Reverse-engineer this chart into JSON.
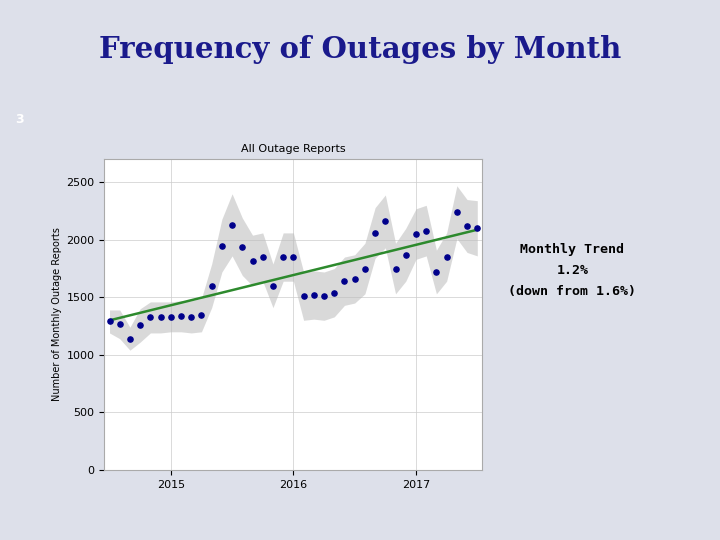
{
  "title": "Frequency of Outages by Month",
  "slide_number": "3",
  "chart_title": "All Outage Reports",
  "ylabel": "Number of Monthly Outage Reports",
  "ylim": [
    0,
    2700
  ],
  "yticks": [
    0,
    500,
    1000,
    1500,
    2000,
    2500
  ],
  "xlabel_ticks": [
    "2015",
    "2016",
    "2017"
  ],
  "bg_color": "#dde0ea",
  "header_bar_color": "#5b3a6e",
  "number_bar_color": "#556b2f",
  "annotation_text": "Monthly Trend\n1.2%\n(down from 1.6%)",
  "trend_color": "#2d8a2d",
  "dot_color": "#00008b",
  "ci_color": "#bbbbbb",
  "data_x": [
    1,
    2,
    3,
    4,
    5,
    6,
    7,
    8,
    9,
    10,
    11,
    12,
    13,
    14,
    15,
    16,
    17,
    18,
    19,
    20,
    21,
    22,
    23,
    24,
    25,
    26,
    27,
    28,
    29,
    30,
    31,
    32,
    33,
    34,
    35,
    36,
    37
  ],
  "data_y": [
    1290,
    1265,
    1140,
    1255,
    1325,
    1325,
    1330,
    1335,
    1330,
    1345,
    1600,
    1950,
    2130,
    1940,
    1820,
    1850,
    1600,
    1850,
    1850,
    1510,
    1520,
    1510,
    1540,
    1640,
    1660,
    1750,
    2060,
    2160,
    1750,
    1870,
    2050,
    2080,
    1720,
    1850,
    2240,
    2120,
    2100
  ],
  "ci_lower": [
    1190,
    1140,
    1040,
    1110,
    1190,
    1190,
    1200,
    1200,
    1190,
    1200,
    1410,
    1720,
    1860,
    1690,
    1600,
    1640,
    1410,
    1640,
    1640,
    1300,
    1310,
    1300,
    1330,
    1430,
    1450,
    1530,
    1840,
    1930,
    1530,
    1640,
    1830,
    1860,
    1530,
    1640,
    2010,
    1890,
    1860
  ],
  "ci_upper": [
    1390,
    1390,
    1240,
    1400,
    1460,
    1460,
    1460,
    1470,
    1470,
    1490,
    1790,
    2180,
    2400,
    2190,
    2040,
    2060,
    1790,
    2060,
    2060,
    1720,
    1730,
    1720,
    1750,
    1850,
    1870,
    1970,
    2280,
    2390,
    1970,
    2100,
    2270,
    2300,
    1910,
    2060,
    2470,
    2350,
    2340
  ]
}
